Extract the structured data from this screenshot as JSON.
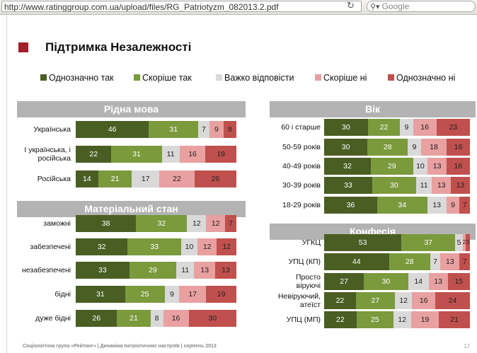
{
  "browser": {
    "url": "http://www.ratinggroup.com.ua/upload/files/RG_Patriotyzm_082013.2.pdf",
    "search_placeholder": "Google",
    "reload_icon": "reload-icon",
    "search_icon": "search-icon"
  },
  "slide": {
    "title": "Підтримка Незалежності",
    "footer": "Соціологічна група «Рейтинг»  |  Динаміка патріотичних настроїв  |  серпень 2013",
    "page_number": "12"
  },
  "colors": {
    "title_marker": "#a31e2b",
    "header_bg": "#b3b3b3"
  },
  "chart_data": {
    "type": "bar",
    "orientation": "horizontal",
    "stacked": true,
    "normalized": true,
    "series": [
      {
        "name": "Однозначно так",
        "color": "#4a5e23"
      },
      {
        "name": "Скоріше так",
        "color": "#7a9a3c"
      },
      {
        "name": "Важко відповісти",
        "color": "#d9d9d9"
      },
      {
        "name": "Скоріше ні",
        "color": "#e8a0a0"
      },
      {
        "name": "Однозначно ні",
        "color": "#c0504d"
      }
    ],
    "panels": [
      {
        "title": "Рідна мова",
        "rows": [
          {
            "label": "Українська",
            "values": [
              46,
              31,
              7,
              9,
              8
            ]
          },
          {
            "label": "І українська, і російська",
            "values": [
              22,
              31,
              11,
              16,
              19
            ]
          },
          {
            "label": "Російська",
            "values": [
              14,
              21,
              17,
              22,
              26
            ]
          }
        ]
      },
      {
        "title": "Матеріальний стан",
        "rows": [
          {
            "label": "заможні",
            "values": [
              38,
              32,
              12,
              12,
              7
            ]
          },
          {
            "label": "забезпечені",
            "values": [
              32,
              33,
              10,
              12,
              12
            ]
          },
          {
            "label": "незабезпечені",
            "values": [
              33,
              29,
              11,
              13,
              13
            ]
          },
          {
            "label": "бідні",
            "values": [
              31,
              25,
              9,
              17,
              19
            ]
          },
          {
            "label": "дуже бідні",
            "values": [
              26,
              21,
              8,
              16,
              30
            ]
          }
        ]
      },
      {
        "title": "Вік",
        "rows": [
          {
            "label": "60 і старше",
            "values": [
              30,
              22,
              9,
              16,
              23
            ]
          },
          {
            "label": "50-59 років",
            "values": [
              30,
              28,
              9,
              18,
              16
            ]
          },
          {
            "label": "40-49 років",
            "values": [
              32,
              29,
              10,
              13,
              16
            ]
          },
          {
            "label": "30-39 років",
            "values": [
              33,
              30,
              11,
              13,
              13
            ]
          },
          {
            "label": "18-29 років",
            "values": [
              36,
              34,
              13,
              9,
              7
            ]
          }
        ]
      },
      {
        "title": "Конфесія",
        "rows": [
          {
            "label": "УГКЦ",
            "values": [
              53,
              37,
              5,
              2,
              3
            ]
          },
          {
            "label": "УПЦ (КП)",
            "values": [
              44,
              28,
              7,
              13,
              7
            ]
          },
          {
            "label": "Просто віруючі",
            "values": [
              27,
              30,
              14,
              13,
              15
            ]
          },
          {
            "label": "Невіруючий, атеїст",
            "values": [
              22,
              27,
              12,
              16,
              24
            ]
          },
          {
            "label": "УПЦ (МП)",
            "values": [
              22,
              25,
              12,
              19,
              21
            ]
          }
        ]
      }
    ]
  }
}
